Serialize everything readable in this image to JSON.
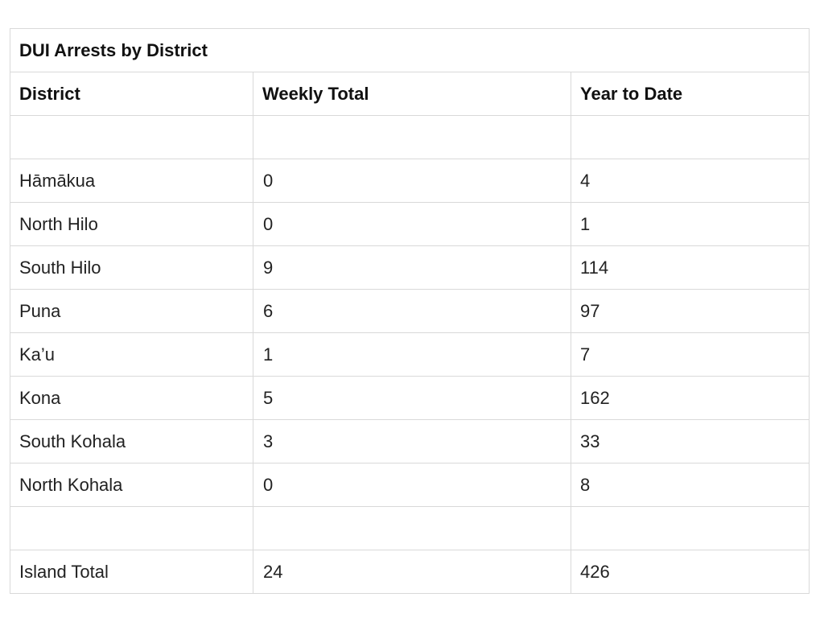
{
  "table": {
    "title": "DUI Arrests by District",
    "headers": [
      "District",
      "Weekly Total",
      "Year to Date"
    ],
    "rows": [
      [
        "",
        "",
        ""
      ],
      [
        "Hāmākua",
        "0",
        "4"
      ],
      [
        "North Hilo",
        "0",
        "1"
      ],
      [
        "South Hilo",
        "9",
        "114"
      ],
      [
        "Puna",
        "6",
        "97"
      ],
      [
        "Ka’u",
        "1",
        "7"
      ],
      [
        "Kona",
        "5",
        "162"
      ],
      [
        "South Kohala",
        "3",
        "33"
      ],
      [
        "North Kohala",
        "0",
        "8"
      ],
      [
        "",
        "",
        ""
      ],
      [
        "Island Total",
        "24",
        "426"
      ]
    ]
  }
}
